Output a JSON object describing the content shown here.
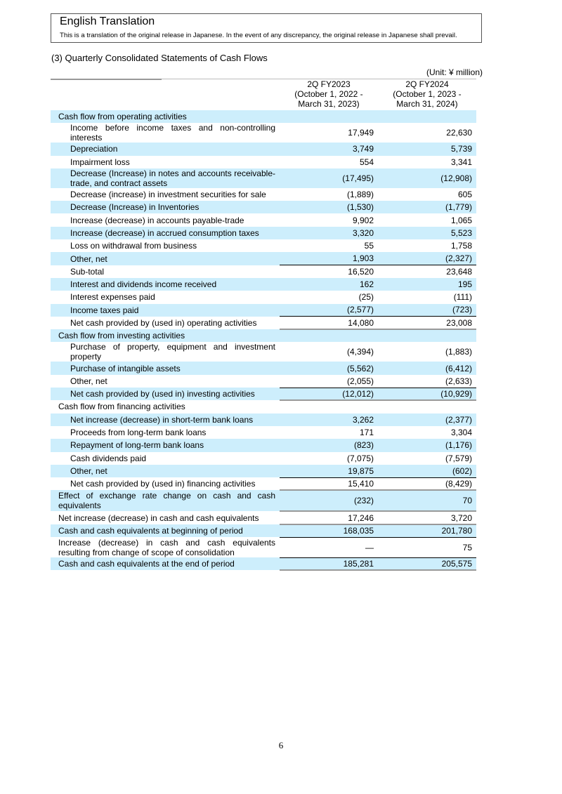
{
  "banner": {
    "title": "English Translation",
    "subtitle": "This is a translation of the original release in Japanese. In the event of any discrepancy, the original release in Japanese shall prevail."
  },
  "section_title": "(3) Quarterly Consolidated Statements of Cash Flows",
  "unit": "(Unit: ¥ million)",
  "columns": [
    {
      "l1": "2Q FY2023",
      "l2": "(October 1, 2022 -",
      "l3": "March 31, 2023)"
    },
    {
      "l1": "2Q FY2024",
      "l2": "(October 1, 2023 -",
      "l3": "March 31, 2024)"
    }
  ],
  "rows": [
    {
      "label": "Cash flow from operating activities",
      "a": "",
      "b": "",
      "type": "sec"
    },
    {
      "label": "Income before income taxes and non-controlling interests",
      "a": "17,949",
      "b": "22,630",
      "type": "dbl"
    },
    {
      "label": "Depreciation",
      "a": "3,749",
      "b": "5,739"
    },
    {
      "label": "Impairment loss",
      "a": "554",
      "b": "3,341"
    },
    {
      "label": "Decrease (Increase) in notes and accounts receivable-trade, and contract assets",
      "a": "(17,495)",
      "b": "(12,908)",
      "type": "dbl"
    },
    {
      "label": "Decrease (increase) in investment securities for sale",
      "a": "(1,889)",
      "b": "605"
    },
    {
      "label": "Decrease (Increase) in Inventories",
      "a": "(1,530)",
      "b": "(1,779)"
    },
    {
      "label": "Increase (decrease) in accounts payable-trade",
      "a": "9,902",
      "b": "1,065"
    },
    {
      "label": "Increase (decrease) in accrued consumption taxes",
      "a": "3,320",
      "b": "5,523"
    },
    {
      "label": "Loss on withdrawal from business",
      "a": "55",
      "b": "1,758"
    },
    {
      "label": "Other, net",
      "a": "1,903",
      "b": "(2,327)"
    },
    {
      "label": "Sub-total",
      "a": "16,520",
      "b": "23,648",
      "type": "tot"
    },
    {
      "label": "Interest and dividends income received",
      "a": "162",
      "b": "195"
    },
    {
      "label": "Interest expenses paid",
      "a": "(25)",
      "b": "(111)"
    },
    {
      "label": "Income taxes paid",
      "a": "(2,577)",
      "b": "(723)"
    },
    {
      "label": "Net cash provided by (used in) operating activities",
      "a": "14,080",
      "b": "23,008",
      "type": "tot"
    },
    {
      "label": "Cash flow from investing activities",
      "a": "",
      "b": "",
      "type": "sec gry"
    },
    {
      "label": "Purchase of property, equipment and investment property",
      "a": "(4,394)",
      "b": "(1,883)",
      "type": "dbl"
    },
    {
      "label": "Purchase of intangible assets",
      "a": "(5,562)",
      "b": "(6,412)"
    },
    {
      "label": "Other, net",
      "a": "(2,055)",
      "b": "(2,633)"
    },
    {
      "label": "Net cash provided by (used in) investing activities",
      "a": "(12,012)",
      "b": "(10,929)",
      "type": "tot"
    },
    {
      "label": "Cash flow from financing activities",
      "a": "",
      "b": "",
      "type": "sec gry"
    },
    {
      "label": "Net increase (decrease) in short-term bank loans",
      "a": "3,262",
      "b": "(2,377)"
    },
    {
      "label": "Proceeds from long-term bank loans",
      "a": "171",
      "b": "3,304"
    },
    {
      "label": "Repayment of long-term bank loans",
      "a": "(823)",
      "b": "(1,176)"
    },
    {
      "label": "Cash dividends paid",
      "a": "(7,075)",
      "b": "(7,579)"
    },
    {
      "label": "Other, net",
      "a": "19,875",
      "b": "(602)"
    },
    {
      "label": "Net cash provided by (used in) financing activities",
      "a": "15,410",
      "b": "(8,429)",
      "type": "tot"
    },
    {
      "label": "Effect of exchange rate change on cash and cash equivalents",
      "a": "(232)",
      "b": "70",
      "type": "sec dbl gry"
    },
    {
      "label": "Net increase (decrease) in cash and cash equivalents",
      "a": "17,246",
      "b": "3,720",
      "type": "sec gry"
    },
    {
      "label": "Cash and cash equivalents at beginning of period",
      "a": "168,035",
      "b": "201,780",
      "type": "sec gry"
    },
    {
      "label": "Increase (decrease) in cash and cash equivalents resulting from change of scope of consolidation",
      "a": "—",
      "b": "75",
      "type": "sec dbl tot"
    },
    {
      "label": "Cash and cash equivalents at the end of period",
      "a": "185,281",
      "b": "205,575",
      "type": "sec tot last"
    }
  ],
  "page_number": "6"
}
